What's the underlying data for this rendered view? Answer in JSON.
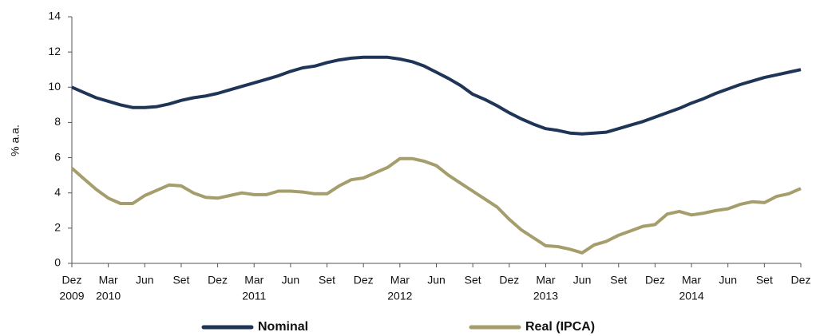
{
  "chart_data": {
    "type": "line",
    "y_label": "% a.a.",
    "categories": [
      "Dez",
      null,
      null,
      "Mar",
      null,
      null,
      "Jun",
      null,
      null,
      "Set",
      null,
      null,
      "Dez",
      null,
      null,
      "Mar",
      null,
      null,
      "Jun",
      null,
      null,
      "Set",
      null,
      null,
      "Dez",
      null,
      null,
      "Mar",
      null,
      null,
      "Jun",
      null,
      null,
      "Set",
      null,
      null,
      "Dez",
      null,
      null,
      "Mar",
      null,
      null,
      "Jun",
      null,
      null,
      "Set",
      null,
      null,
      "Dez",
      null,
      null,
      "Mar",
      null,
      null,
      "Jun",
      null,
      null,
      "Set",
      null,
      null,
      "Dez"
    ],
    "year_labels": [
      "2009",
      null,
      null,
      "2010",
      null,
      null,
      null,
      null,
      null,
      null,
      null,
      null,
      null,
      null,
      null,
      "2011",
      null,
      null,
      null,
      null,
      null,
      null,
      null,
      null,
      null,
      null,
      null,
      "2012",
      null,
      null,
      null,
      null,
      null,
      null,
      null,
      null,
      null,
      null,
      null,
      "2013",
      null,
      null,
      null,
      null,
      null,
      null,
      null,
      null,
      null,
      null,
      null,
      "2014",
      null,
      null,
      null,
      null,
      null,
      null,
      null,
      null,
      null
    ],
    "ylim": [
      0,
      14
    ],
    "yticks": [
      0,
      2,
      4,
      6,
      8,
      10,
      12,
      14
    ],
    "grid": false,
    "legend": "bottom",
    "series": [
      {
        "name": "Nominal",
        "color": "#1f3557",
        "values": [
          10.0,
          9.7,
          9.4,
          9.2,
          9.0,
          8.85,
          8.85,
          8.9,
          9.05,
          9.25,
          9.4,
          9.5,
          9.65,
          9.85,
          10.05,
          10.25,
          10.45,
          10.65,
          10.9,
          11.1,
          11.2,
          11.4,
          11.55,
          11.65,
          11.7,
          11.7,
          11.7,
          11.6,
          11.45,
          11.2,
          10.85,
          10.5,
          10.1,
          9.6,
          9.3,
          8.95,
          8.55,
          8.2,
          7.9,
          7.65,
          7.55,
          7.4,
          7.35,
          7.4,
          7.45,
          7.65,
          7.85,
          8.05,
          8.3,
          8.55,
          8.8,
          9.1,
          9.35,
          9.65,
          9.9,
          10.15,
          10.35,
          10.55,
          10.7,
          10.85,
          11.0
        ]
      },
      {
        "name": "Real (IPCA)",
        "color": "#a59d6c",
        "values": [
          5.4,
          4.8,
          4.2,
          3.7,
          3.4,
          3.4,
          3.85,
          4.15,
          4.45,
          4.4,
          4.0,
          3.75,
          3.7,
          3.85,
          4.0,
          3.9,
          3.9,
          4.1,
          4.1,
          4.05,
          3.95,
          3.95,
          4.4,
          4.75,
          4.85,
          5.15,
          5.45,
          5.95,
          5.95,
          5.8,
          5.55,
          5.0,
          4.55,
          4.1,
          3.65,
          3.2,
          2.5,
          1.9,
          1.45,
          1.0,
          0.95,
          0.8,
          0.6,
          1.05,
          1.25,
          1.6,
          1.85,
          2.1,
          2.2,
          2.8,
          2.95,
          2.75,
          2.85,
          3.0,
          3.1,
          3.35,
          3.5,
          3.45,
          3.8,
          3.95,
          4.25
        ]
      }
    ]
  }
}
